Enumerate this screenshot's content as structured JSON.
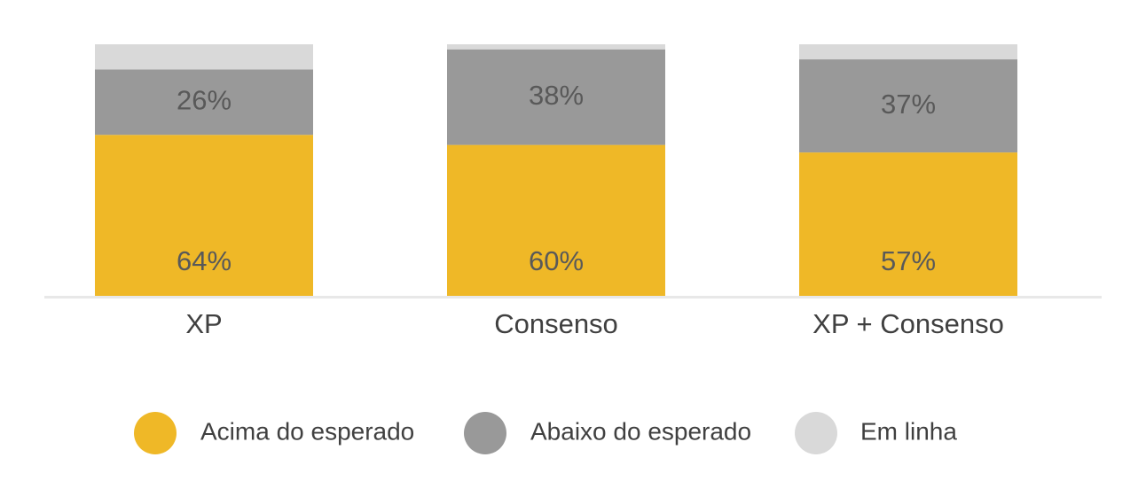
{
  "chart_data": {
    "type": "bar",
    "stacked": true,
    "categories": [
      "XP",
      "Consenso",
      "XP + Consenso"
    ],
    "series": [
      {
        "name": "Acima do esperado",
        "color": "#EFB827",
        "values": [
          64,
          60,
          57
        ],
        "labels": [
          "64%",
          "60%",
          "57%"
        ]
      },
      {
        "name": "Abaixo do esperado",
        "color": "#999999",
        "values": [
          26,
          38,
          37
        ],
        "labels": [
          "26%",
          "38%",
          "37%"
        ]
      },
      {
        "name": "Em linha",
        "color": "#D9D9D9",
        "values": [
          10,
          2,
          6
        ],
        "labels": [
          "",
          "",
          ""
        ]
      }
    ],
    "ylim": [
      0,
      100
    ],
    "grid": false,
    "legend": "bottom",
    "axis_line_color": "#E8E8E8"
  }
}
